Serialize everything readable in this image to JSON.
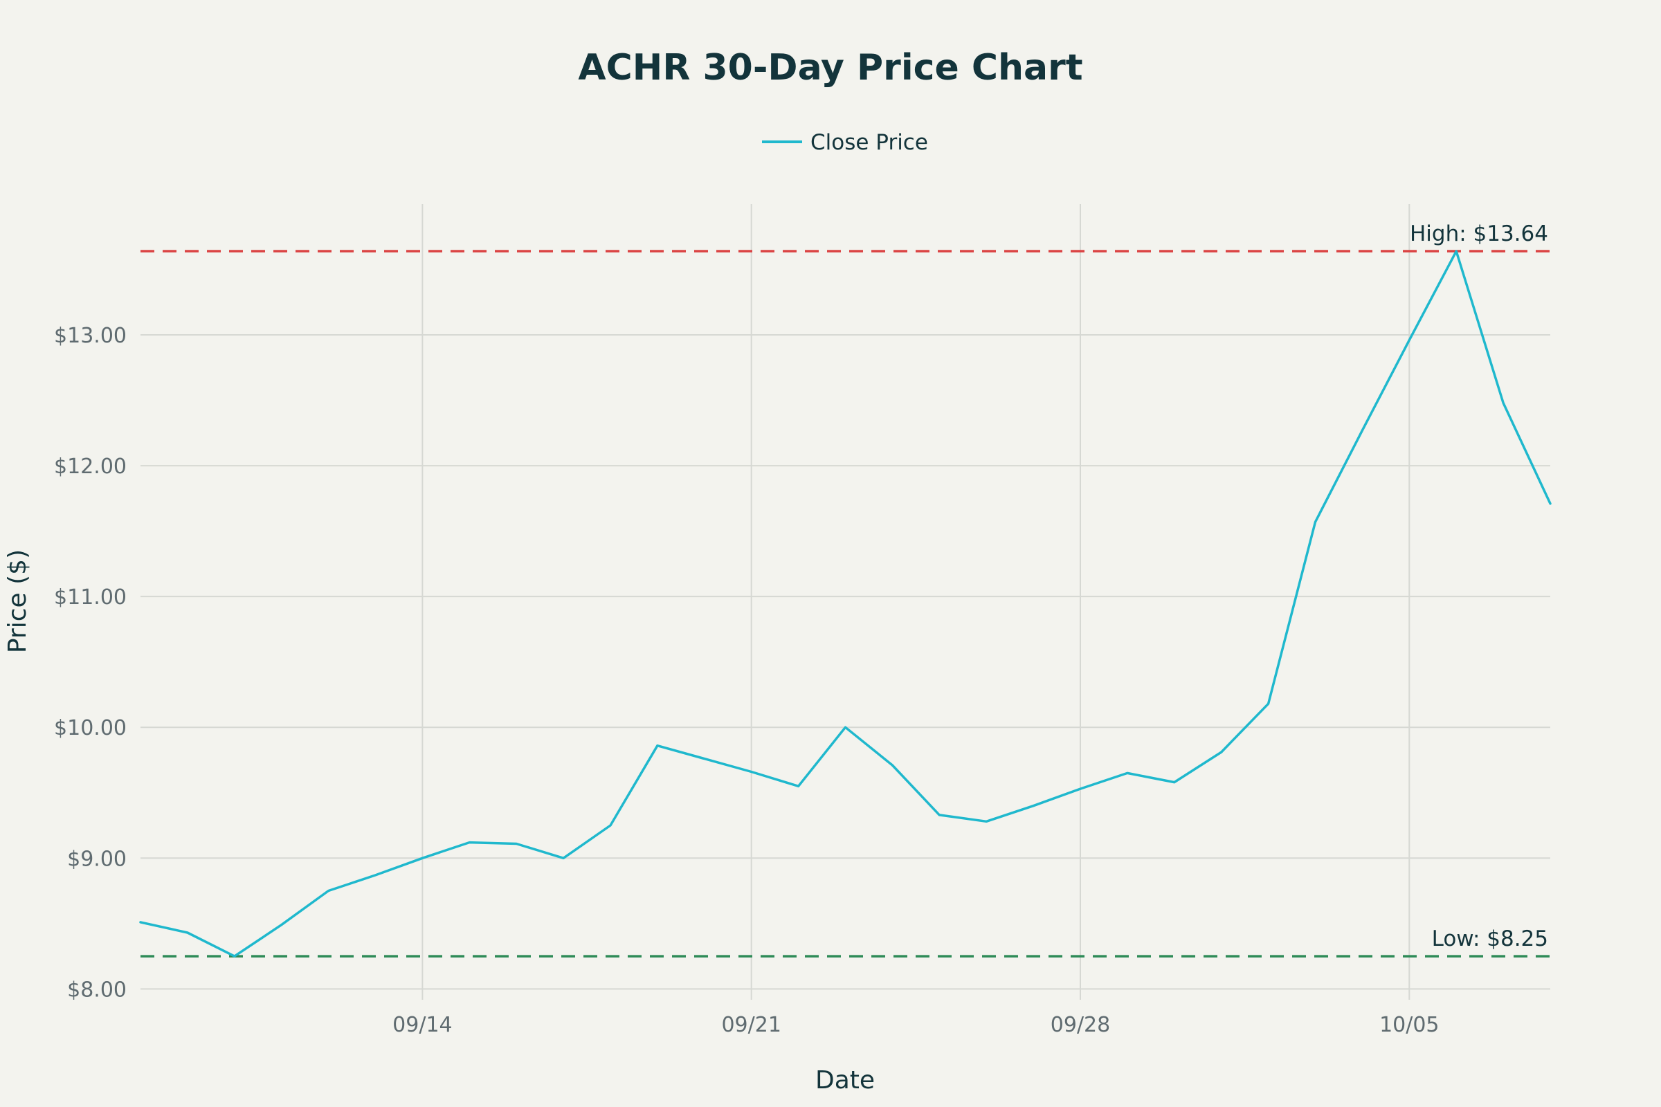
{
  "chart_data": {
    "type": "line",
    "title": "ACHR 30-Day Price Chart",
    "xlabel": "Date",
    "ylabel": "Price ($)",
    "grid": true,
    "legend_position": "top-center",
    "x_ticks": [
      "09/14",
      "09/21",
      "09/28",
      "10/05"
    ],
    "y_ticks": [
      "$8.00",
      "$9.00",
      "$10.00",
      "$11.00",
      "$12.00",
      "$13.00"
    ],
    "ylim": [
      7.97,
      14.0
    ],
    "series": [
      {
        "name": "Close Price",
        "color": "#1fb8cd",
        "x": [
          "09/08",
          "09/09",
          "09/10",
          "09/11",
          "09/12",
          "09/13",
          "09/14",
          "09/15",
          "09/16",
          "09/17",
          "09/18",
          "09/19",
          "09/20",
          "09/21",
          "09/22",
          "09/23",
          "09/24",
          "09/25",
          "09/26",
          "09/27",
          "09/28",
          "09/29",
          "09/30",
          "10/01",
          "10/02",
          "10/03",
          "10/04",
          "10/05",
          "10/06",
          "10/07",
          "10/08"
        ],
        "values": [
          8.51,
          8.43,
          8.25,
          8.49,
          8.75,
          8.87,
          9.0,
          9.12,
          9.11,
          9.0,
          9.25,
          9.86,
          9.76,
          9.66,
          9.55,
          10.0,
          9.71,
          9.33,
          9.28,
          9.4,
          9.53,
          9.65,
          9.58,
          9.81,
          10.18,
          11.57,
          12.27,
          12.96,
          13.64,
          12.48,
          11.71
        ]
      }
    ],
    "reference_lines": [
      {
        "label": "High: $13.64",
        "value": 13.64,
        "color": "#db4545"
      },
      {
        "label": "Low: $8.25",
        "value": 8.25,
        "color": "#2e8b57"
      }
    ]
  }
}
